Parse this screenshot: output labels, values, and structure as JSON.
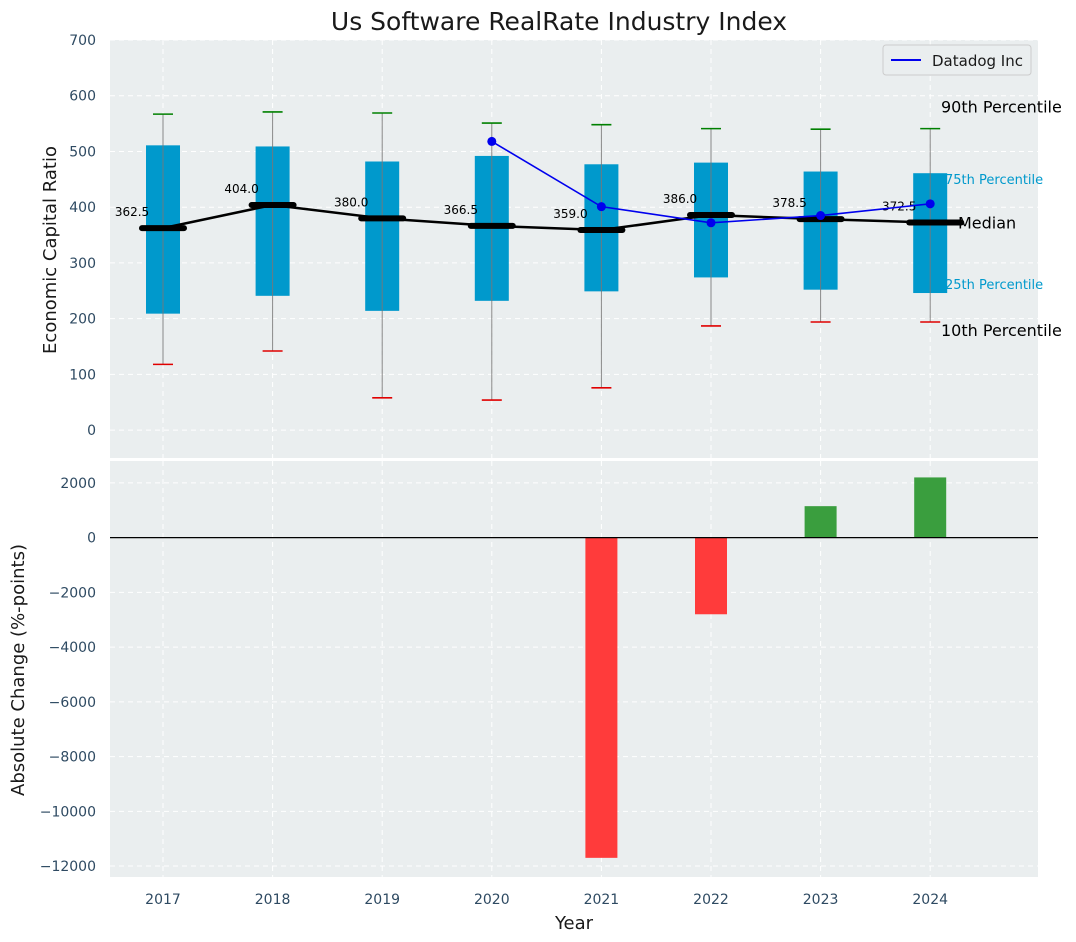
{
  "title": "Us Software RealRate Industry Index",
  "colors": {
    "box": "#0099cc",
    "median": "#000000",
    "company_line": "#0000ee",
    "whisker_high": "#008000",
    "whisker_low": "#e00000",
    "bar_positive": "#3a9e3e",
    "bar_negative": "#ff3b3b",
    "panel_bg": "#eaeeef",
    "grid": "#ffffff"
  },
  "chart_data": [
    {
      "type": "box",
      "ylabel": "Economic Capital Ratio",
      "ylim": [
        -50,
        700
      ],
      "yticks": [
        0,
        100,
        200,
        300,
        400,
        500,
        600,
        700
      ],
      "categories": [
        "2017",
        "2018",
        "2019",
        "2020",
        "2021",
        "2022",
        "2023",
        "2024"
      ],
      "p10": [
        118,
        142,
        58,
        54,
        76,
        187,
        194,
        194
      ],
      "p25": [
        209,
        241,
        214,
        232,
        249,
        274,
        252,
        246
      ],
      "median": [
        362.5,
        404.0,
        380.0,
        366.5,
        359.0,
        386.0,
        378.5,
        372.5
      ],
      "p75": [
        511,
        509,
        482,
        492,
        477,
        480,
        464,
        461
      ],
      "p90": [
        567,
        571,
        569,
        551,
        548,
        541,
        540,
        541
      ],
      "median_labels": [
        "362.5",
        "404.0",
        "380.0",
        "366.5",
        "359.0",
        "386.0",
        "378.5",
        "372.5"
      ],
      "company": {
        "name": "Datadog Inc",
        "start_index": 3,
        "values": [
          518,
          401,
          372,
          385,
          406
        ]
      },
      "percentile_labels": {
        "p90": "90th Percentile",
        "p75": "75th Percentile",
        "median": "Median",
        "p25": "25th Percentile",
        "p10": "10th Percentile"
      },
      "legend": {
        "position": "top-right",
        "entries": [
          "Datadog Inc"
        ]
      },
      "grid": true
    },
    {
      "type": "bar",
      "xlabel": "Year",
      "ylabel": "Absolute Change (%-points)",
      "ylim": [
        -12400,
        2800
      ],
      "yticks": [
        -12000,
        -10000,
        -8000,
        -6000,
        -4000,
        -2000,
        0,
        2000
      ],
      "ytick_labels": [
        "−12000",
        "−10000",
        "−8000",
        "−6000",
        "−4000",
        "−2000",
        "0",
        "2000"
      ],
      "categories": [
        "2017",
        "2018",
        "2019",
        "2020",
        "2021",
        "2022",
        "2023",
        "2024"
      ],
      "values": [
        null,
        null,
        null,
        null,
        -11700,
        -2800,
        1150,
        2200
      ],
      "grid": true
    }
  ]
}
